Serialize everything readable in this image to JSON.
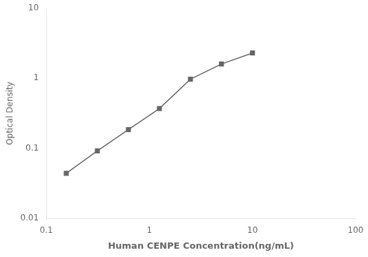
{
  "chart_data": {
    "type": "line",
    "x": [
      0.156,
      0.3125,
      0.625,
      1.25,
      2.5,
      5.0,
      10.0
    ],
    "values": [
      0.044,
      0.092,
      0.185,
      0.37,
      0.97,
      1.6,
      2.3
    ],
    "xlabel": "Human CENPE Concentration(ng/mL)",
    "ylabel": "Optical Density",
    "xlim": [
      0.1,
      100
    ],
    "ylim": [
      0.01,
      10
    ],
    "xticks": [
      0.1,
      1,
      10,
      100
    ],
    "yticks": [
      0.01,
      0.1,
      1,
      10
    ],
    "log": true,
    "grid": false,
    "color": "#666666",
    "marker": "square"
  }
}
